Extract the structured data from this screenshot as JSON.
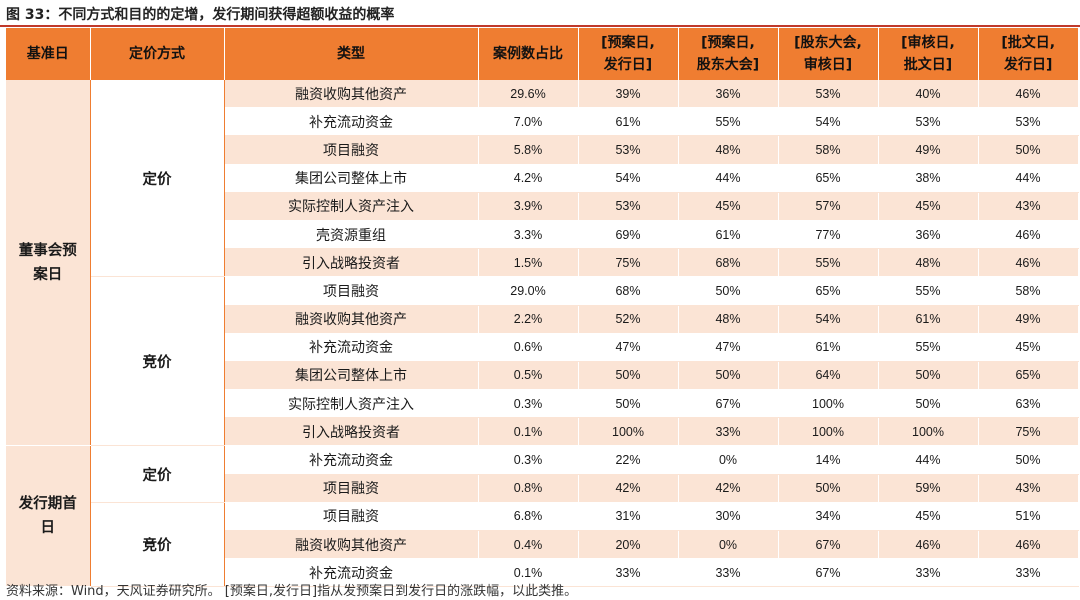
{
  "figure_title": "图 33：不同方式和目的的定增，发行期间获得超额收益的概率",
  "headers": [
    "基准日",
    "定价方式",
    "类型",
    "案例数占比",
    "[预案日,\n发行日]",
    "[预案日,\n股东大会]",
    "[股东大会,\n审核日]",
    "[审核日,\n批文日]",
    "[批文日,\n发行日]"
  ],
  "groups": [
    {
      "base": "董事会预\n案日",
      "methods": [
        {
          "method": "定价",
          "rows": [
            [
              "融资收购其他资产",
              "29.6%",
              "39%",
              "36%",
              "53%",
              "40%",
              "46%"
            ],
            [
              "补充流动资金",
              "7.0%",
              "61%",
              "55%",
              "54%",
              "53%",
              "53%"
            ],
            [
              "项目融资",
              "5.8%",
              "53%",
              "48%",
              "58%",
              "49%",
              "50%"
            ],
            [
              "集团公司整体上市",
              "4.2%",
              "54%",
              "44%",
              "65%",
              "38%",
              "44%"
            ],
            [
              "实际控制人资产注入",
              "3.9%",
              "53%",
              "45%",
              "57%",
              "45%",
              "43%"
            ],
            [
              "壳资源重组",
              "3.3%",
              "69%",
              "61%",
              "77%",
              "36%",
              "46%"
            ],
            [
              "引入战略投资者",
              "1.5%",
              "75%",
              "68%",
              "55%",
              "48%",
              "46%"
            ]
          ]
        },
        {
          "method": "竞价",
          "rows": [
            [
              "项目融资",
              "29.0%",
              "68%",
              "50%",
              "65%",
              "55%",
              "58%"
            ],
            [
              "融资收购其他资产",
              "2.2%",
              "52%",
              "48%",
              "54%",
              "61%",
              "49%"
            ],
            [
              "补充流动资金",
              "0.6%",
              "47%",
              "47%",
              "61%",
              "55%",
              "45%"
            ],
            [
              "集团公司整体上市",
              "0.5%",
              "50%",
              "50%",
              "64%",
              "50%",
              "65%"
            ],
            [
              "实际控制人资产注入",
              "0.3%",
              "50%",
              "67%",
              "100%",
              "50%",
              "63%"
            ],
            [
              "引入战略投资者",
              "0.1%",
              "100%",
              "33%",
              "100%",
              "100%",
              "75%"
            ]
          ]
        }
      ]
    },
    {
      "base": "发行期首\n日",
      "methods": [
        {
          "method": "定价",
          "rows": [
            [
              "补充流动资金",
              "0.3%",
              "22%",
              "0%",
              "14%",
              "44%",
              "50%"
            ],
            [
              "项目融资",
              "0.8%",
              "42%",
              "42%",
              "50%",
              "59%",
              "43%"
            ]
          ]
        },
        {
          "method": "竞价",
          "rows": [
            [
              "项目融资",
              "6.8%",
              "31%",
              "30%",
              "34%",
              "45%",
              "51%"
            ],
            [
              "融资收购其他资产",
              "0.4%",
              "20%",
              "0%",
              "67%",
              "46%",
              "46%"
            ],
            [
              "补充流动资金",
              "0.1%",
              "33%",
              "33%",
              "67%",
              "33%",
              "33%"
            ]
          ]
        }
      ]
    }
  ],
  "source_note": "资料来源：Wind，天风证券研究所。 [预案日,发行日]指从发预案日到发行日的涨跌幅，以此类推。",
  "colors": {
    "header": "#ef7d31",
    "shade": "#fbe4d5",
    "rule": "#c0392b"
  }
}
